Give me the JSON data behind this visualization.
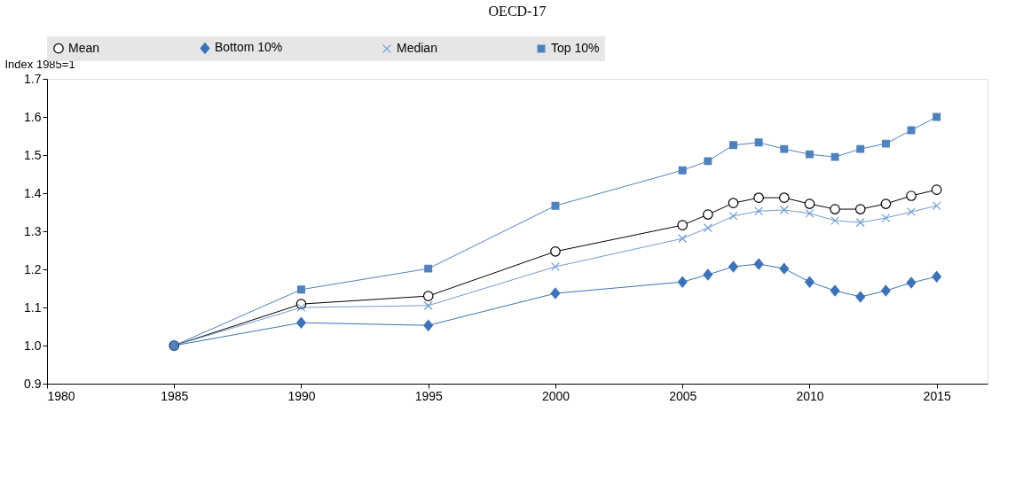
{
  "chart_data": {
    "type": "line",
    "title": "OECD-17",
    "ylabel": "Index 1985=1",
    "x": [
      1985,
      1990,
      1995,
      2000,
      2005,
      2006,
      2007,
      2008,
      2009,
      2010,
      2011,
      2012,
      2013,
      2014,
      2015
    ],
    "series": [
      {
        "name": "Mean",
        "color": "#000000",
        "marker": "circle",
        "values": [
          1.0,
          1.109,
          1.13,
          1.247,
          1.316,
          1.344,
          1.374,
          1.388,
          1.388,
          1.372,
          1.358,
          1.358,
          1.372,
          1.393,
          1.409
        ]
      },
      {
        "name": "Bottom 10%",
        "color": "#3d72b8",
        "marker": "diamond",
        "values": [
          1.0,
          1.06,
          1.053,
          1.137,
          1.167,
          1.186,
          1.207,
          1.214,
          1.202,
          1.167,
          1.144,
          1.128,
          1.144,
          1.165,
          1.181
        ]
      },
      {
        "name": "Median",
        "color": "#6e9bd2",
        "marker": "cross",
        "values": [
          1.0,
          1.1,
          1.105,
          1.207,
          1.281,
          1.309,
          1.34,
          1.353,
          1.356,
          1.347,
          1.328,
          1.323,
          1.335,
          1.351,
          1.367
        ]
      },
      {
        "name": "Top 10%",
        "color": "#4f81bd",
        "marker": "square",
        "values": [
          1.0,
          1.147,
          1.202,
          1.367,
          1.46,
          1.484,
          1.526,
          1.533,
          1.516,
          1.502,
          1.495,
          1.516,
          1.53,
          1.565,
          1.6
        ]
      }
    ],
    "xlim": [
      1980,
      2017
    ],
    "xticks": [
      1980,
      1985,
      1990,
      1995,
      2000,
      2005,
      2010,
      2015
    ],
    "ylim": [
      0.9,
      1.7
    ],
    "yticks": [
      0.9,
      {
        "value": 1.0,
        "label": "1.0"
      },
      1.1,
      1.2,
      1.3,
      1.4,
      1.5,
      1.6,
      1.7
    ],
    "grid": false,
    "legend": "top",
    "line_style": "solid"
  }
}
